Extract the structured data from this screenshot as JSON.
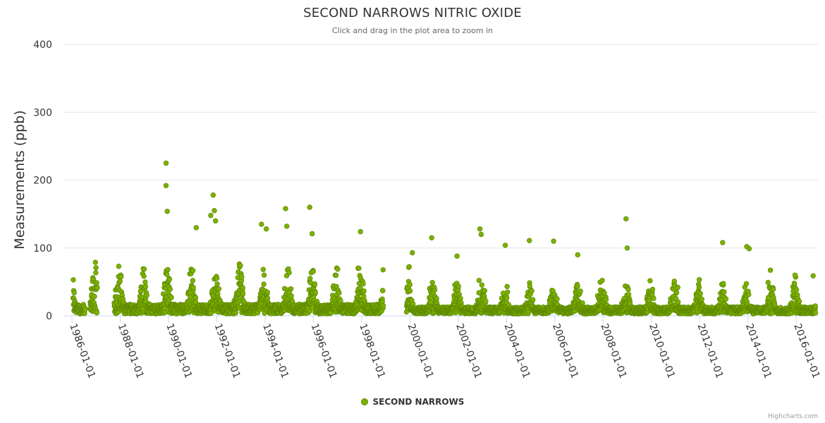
{
  "title": "SECOND NARROWS NITRIC OXIDE",
  "subtitle": "Click and drag in the plot area to zoom in",
  "credits": "Highcharts.com",
  "legend": {
    "label": "SECOND NARROWS",
    "color": "#7cb100"
  },
  "chart_data": {
    "type": "scatter",
    "title": "SECOND NARROWS NITRIC OXIDE",
    "subtitle": "Click and drag in the plot area to zoom in",
    "ylabel": "Measurements (ppb)",
    "xlabel": "",
    "ylim": [
      0,
      400
    ],
    "yticks": [
      0,
      100,
      200,
      300,
      400
    ],
    "xlim": [
      1985.65,
      2016.9
    ],
    "xticks": [
      {
        "value": 1986,
        "label": "1986-01-01"
      },
      {
        "value": 1988,
        "label": "1988-01-01"
      },
      {
        "value": 1990,
        "label": "1990-01-01"
      },
      {
        "value": 1992,
        "label": "1992-01-01"
      },
      {
        "value": 1994,
        "label": "1994-01-01"
      },
      {
        "value": 1996,
        "label": "1996-01-01"
      },
      {
        "value": 1998,
        "label": "1998-01-01"
      },
      {
        "value": 2000,
        "label": "2000-01-01"
      },
      {
        "value": 2002,
        "label": "2002-01-01"
      },
      {
        "value": 2004,
        "label": "2004-01-01"
      },
      {
        "value": 2006,
        "label": "2006-01-01"
      },
      {
        "value": 2008,
        "label": "2008-01-01"
      },
      {
        "value": 2010,
        "label": "2010-01-01"
      },
      {
        "value": 2012,
        "label": "2012-01-01"
      },
      {
        "value": 2014,
        "label": "2014-01-01"
      },
      {
        "value": 2016,
        "label": "2016-01-01"
      }
    ],
    "grid": true,
    "legend_position": "bottom-center",
    "series": [
      {
        "name": "SECOND NARROWS",
        "color": "#7cb100",
        "data_gaps": [
          [
            1986.55,
            1986.75
          ],
          [
            1987.05,
            1987.75
          ],
          [
            1998.9,
            1999.85
          ]
        ],
        "notable_points": [
          {
            "x": 1989.9,
            "y": 225
          },
          {
            "x": 1989.9,
            "y": 192
          },
          {
            "x": 1989.95,
            "y": 154
          },
          {
            "x": 1991.15,
            "y": 130
          },
          {
            "x": 1991.75,
            "y": 148
          },
          {
            "x": 1991.85,
            "y": 178
          },
          {
            "x": 1991.9,
            "y": 155
          },
          {
            "x": 1991.95,
            "y": 140
          },
          {
            "x": 1993.85,
            "y": 135
          },
          {
            "x": 1994.05,
            "y": 128
          },
          {
            "x": 1994.85,
            "y": 158
          },
          {
            "x": 1994.9,
            "y": 132
          },
          {
            "x": 1995.85,
            "y": 160
          },
          {
            "x": 1995.95,
            "y": 121
          },
          {
            "x": 1997.95,
            "y": 124
          },
          {
            "x": 2000.1,
            "y": 93
          },
          {
            "x": 2000.9,
            "y": 115
          },
          {
            "x": 2001.95,
            "y": 88
          },
          {
            "x": 2002.9,
            "y": 128
          },
          {
            "x": 2002.95,
            "y": 120
          },
          {
            "x": 2003.95,
            "y": 104
          },
          {
            "x": 2004.95,
            "y": 111
          },
          {
            "x": 2005.95,
            "y": 110
          },
          {
            "x": 2006.95,
            "y": 90
          },
          {
            "x": 2008.95,
            "y": 143
          },
          {
            "x": 2009.0,
            "y": 100
          },
          {
            "x": 2012.95,
            "y": 108
          },
          {
            "x": 2013.95,
            "y": 102
          },
          {
            "x": 2014.05,
            "y": 99
          },
          {
            "x": 2015.95,
            "y": 60
          },
          {
            "x": 2016.7,
            "y": 59
          }
        ]
      }
    ]
  }
}
